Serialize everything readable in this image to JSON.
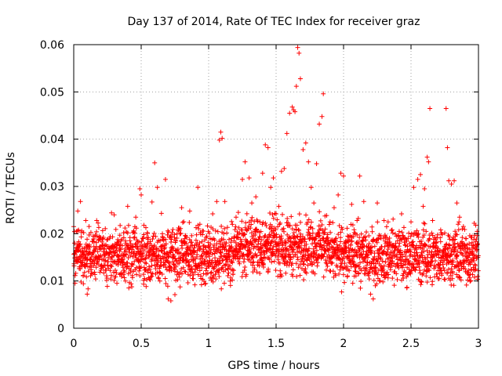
{
  "chart_data": {
    "type": "scatter",
    "title": "Day 137 of 2014, Rate Of TEC Index for receiver graz",
    "xlabel": "GPS time / hours",
    "ylabel": "ROTI / TECUs",
    "xlim": [
      0,
      3
    ],
    "ylim": [
      0,
      0.06
    ],
    "x_ticks": [
      0,
      0.5,
      1,
      1.5,
      2,
      2.5,
      3
    ],
    "x_tick_labels": [
      "0",
      "0.5",
      "1",
      "1.5",
      "2",
      "2.5",
      "3"
    ],
    "y_ticks": [
      0,
      0.01,
      0.02,
      0.03,
      0.04,
      0.05,
      0.06
    ],
    "y_tick_labels": [
      "0",
      "0.01",
      "0.02",
      "0.03",
      "0.04",
      "0.05",
      "0.06"
    ],
    "grid": true,
    "marker": "+",
    "series_color": "#ff0000",
    "sample_points": [
      [
        0.01,
        0.0095
      ],
      [
        0.02,
        0.0205
      ],
      [
        0.03,
        0.0248
      ],
      [
        0.05,
        0.0268
      ],
      [
        0.06,
        0.0155
      ],
      [
        0.08,
        0.0118
      ],
      [
        0.1,
        0.0072
      ],
      [
        0.12,
        0.0145
      ],
      [
        0.15,
        0.0183
      ],
      [
        0.17,
        0.0228
      ],
      [
        0.2,
        0.0192
      ],
      [
        0.22,
        0.0162
      ],
      [
        0.25,
        0.0133
      ],
      [
        0.28,
        0.0244
      ],
      [
        0.3,
        0.024
      ],
      [
        0.32,
        0.0095
      ],
      [
        0.35,
        0.0185
      ],
      [
        0.38,
        0.0212
      ],
      [
        0.4,
        0.0258
      ],
      [
        0.43,
        0.0172
      ],
      [
        0.46,
        0.0235
      ],
      [
        0.49,
        0.0295
      ],
      [
        0.5,
        0.0282
      ],
      [
        0.52,
        0.0218
      ],
      [
        0.55,
        0.0188
      ],
      [
        0.58,
        0.0267
      ],
      [
        0.6,
        0.035
      ],
      [
        0.62,
        0.0298
      ],
      [
        0.65,
        0.0243
      ],
      [
        0.68,
        0.0315
      ],
      [
        0.7,
        0.0062
      ],
      [
        0.72,
        0.0058
      ],
      [
        0.75,
        0.0071
      ],
      [
        0.78,
        0.0212
      ],
      [
        0.8,
        0.0255
      ],
      [
        0.83,
        0.0195
      ],
      [
        0.86,
        0.0248
      ],
      [
        0.89,
        0.0164
      ],
      [
        0.92,
        0.0298
      ],
      [
        0.95,
        0.0183
      ],
      [
        0.98,
        0.0122
      ],
      [
        1.0,
        0.0158
      ],
      [
        1.03,
        0.0242
      ],
      [
        1.06,
        0.0268
      ],
      [
        1.08,
        0.0398
      ],
      [
        1.09,
        0.0415
      ],
      [
        1.1,
        0.0402
      ],
      [
        1.12,
        0.0268
      ],
      [
        1.15,
        0.0132
      ],
      [
        1.18,
        0.0114
      ],
      [
        1.2,
        0.0215
      ],
      [
        1.22,
        0.0245
      ],
      [
        1.25,
        0.0315
      ],
      [
        1.27,
        0.0352
      ],
      [
        1.3,
        0.0318
      ],
      [
        1.32,
        0.0265
      ],
      [
        1.35,
        0.0278
      ],
      [
        1.38,
        0.0225
      ],
      [
        1.4,
        0.0328
      ],
      [
        1.42,
        0.0388
      ],
      [
        1.44,
        0.0382
      ],
      [
        1.46,
        0.0298
      ],
      [
        1.48,
        0.0318
      ],
      [
        1.5,
        0.0242
      ],
      [
        1.52,
        0.0258
      ],
      [
        1.54,
        0.0332
      ],
      [
        1.56,
        0.0338
      ],
      [
        1.58,
        0.0412
      ],
      [
        1.6,
        0.0455
      ],
      [
        1.62,
        0.0468
      ],
      [
        1.63,
        0.0462
      ],
      [
        1.64,
        0.0458
      ],
      [
        1.65,
        0.0512
      ],
      [
        1.66,
        0.0594
      ],
      [
        1.67,
        0.0582
      ],
      [
        1.68,
        0.0528
      ],
      [
        1.7,
        0.0378
      ],
      [
        1.72,
        0.0392
      ],
      [
        1.74,
        0.0352
      ],
      [
        1.76,
        0.0298
      ],
      [
        1.78,
        0.0265
      ],
      [
        1.8,
        0.0348
      ],
      [
        1.82,
        0.0432
      ],
      [
        1.84,
        0.0448
      ],
      [
        1.85,
        0.0496
      ],
      [
        1.88,
        0.0198
      ],
      [
        1.9,
        0.0225
      ],
      [
        1.93,
        0.0255
      ],
      [
        1.96,
        0.0282
      ],
      [
        1.98,
        0.0328
      ],
      [
        2.0,
        0.0322
      ],
      [
        2.03,
        0.0195
      ],
      [
        2.06,
        0.0262
      ],
      [
        2.1,
        0.0228
      ],
      [
        2.12,
        0.0322
      ],
      [
        2.15,
        0.0268
      ],
      [
        2.18,
        0.0115
      ],
      [
        2.2,
        0.0072
      ],
      [
        2.22,
        0.0062
      ],
      [
        2.25,
        0.0265
      ],
      [
        2.28,
        0.0172
      ],
      [
        2.3,
        0.0228
      ],
      [
        2.33,
        0.0225
      ],
      [
        2.36,
        0.0208
      ],
      [
        2.4,
        0.0185
      ],
      [
        2.43,
        0.0242
      ],
      [
        2.46,
        0.0118
      ],
      [
        2.5,
        0.0225
      ],
      [
        2.52,
        0.0298
      ],
      [
        2.55,
        0.0315
      ],
      [
        2.57,
        0.0325
      ],
      [
        2.59,
        0.0258
      ],
      [
        2.6,
        0.0295
      ],
      [
        2.62,
        0.0362
      ],
      [
        2.63,
        0.0352
      ],
      [
        2.64,
        0.0465
      ],
      [
        2.66,
        0.0228
      ],
      [
        2.68,
        0.0162
      ],
      [
        2.7,
        0.0122
      ],
      [
        2.72,
        0.0208
      ],
      [
        2.74,
        0.0162
      ],
      [
        2.76,
        0.0465
      ],
      [
        2.77,
        0.0382
      ],
      [
        2.78,
        0.0312
      ],
      [
        2.8,
        0.0305
      ],
      [
        2.82,
        0.0312
      ],
      [
        2.84,
        0.0265
      ],
      [
        2.86,
        0.0235
      ],
      [
        2.88,
        0.0192
      ],
      [
        2.9,
        0.0142
      ],
      [
        2.92,
        0.0102
      ],
      [
        2.94,
        0.0138
      ],
      [
        2.96,
        0.0155
      ],
      [
        2.98,
        0.0218
      ],
      [
        2.99,
        0.0205
      ]
    ]
  }
}
